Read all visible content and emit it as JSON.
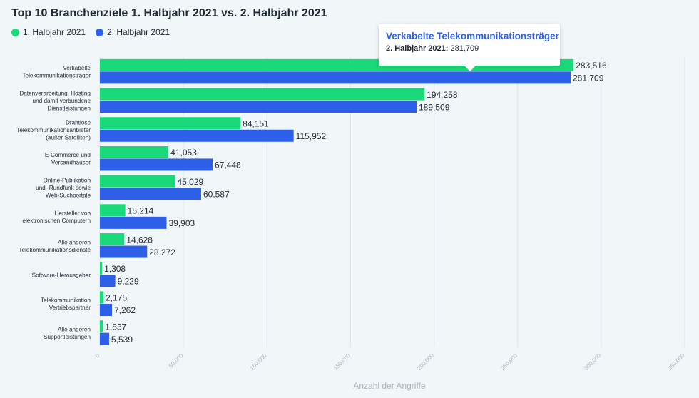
{
  "header": {
    "title": "Top 10 Branchenziele 1. Halbjahr 2021 vs. 2. Halbjahr 2021"
  },
  "colors": {
    "series1": "#1ad97a",
    "series2": "#2e5fe8"
  },
  "tooltip": {
    "title": "Verkabelte Telekommunikationsträger",
    "series_label": "2. Halbjahr 2021:",
    "value": "281,709"
  },
  "chart_data": {
    "type": "bar",
    "orientation": "horizontal",
    "title": "Top 10 Branchenziele 1. Halbjahr 2021 vs. 2. Halbjahr 2021",
    "xlabel": "Anzahl der Angriffe",
    "ylabel": "",
    "xlim": [
      0,
      350000
    ],
    "xticks": [
      0,
      50000,
      100000,
      150000,
      200000,
      250000,
      300000,
      350000
    ],
    "xtick_labels": [
      "0",
      "50,000",
      "100,000",
      "150,000",
      "200,000",
      "250,000",
      "300,000",
      "350,000"
    ],
    "legend_position": "top-left",
    "grid": true,
    "categories": [
      [
        "Verkabelte",
        "Telekommunikationsträger"
      ],
      [
        "Datenverarbeitung, Hosting",
        "und damit verbundene",
        "Dienstleistungen"
      ],
      [
        "Drahtlose",
        "Telekommunikationsanbieter",
        "(außer Satelliten)"
      ],
      [
        "E-Commerce und",
        "Versandhäuser"
      ],
      [
        "Online-Publikation",
        "und -Rundfunk sowie",
        "Web-Suchportale"
      ],
      [
        "Hersteller von",
        "elektronischen Computern"
      ],
      [
        "Alle anderen",
        "Telekommunikationsdienste"
      ],
      [
        "Software-Herausgeber"
      ],
      [
        "Telekommunikation",
        "Vertriebspartner"
      ],
      [
        "Alle anderen",
        "Supportleistungen"
      ]
    ],
    "series": [
      {
        "name": "1. Halbjahr 2021",
        "values": [
          283516,
          194258,
          84151,
          41053,
          45029,
          15214,
          14628,
          1308,
          2175,
          1837
        ],
        "labels": [
          "283,516",
          "194,258",
          "84,151",
          "41,053",
          "45,029",
          "15,214",
          "14,628",
          "1,308",
          "2,175",
          "1,837"
        ]
      },
      {
        "name": "2. Halbjahr 2021",
        "values": [
          281709,
          189509,
          115952,
          67448,
          60587,
          39903,
          28272,
          9229,
          7262,
          5539
        ],
        "labels": [
          "281,709",
          "189,509",
          "115,952",
          "67,448",
          "60,587",
          "39,903",
          "28,272",
          "9,229",
          "7,262",
          "5,539"
        ]
      }
    ]
  }
}
